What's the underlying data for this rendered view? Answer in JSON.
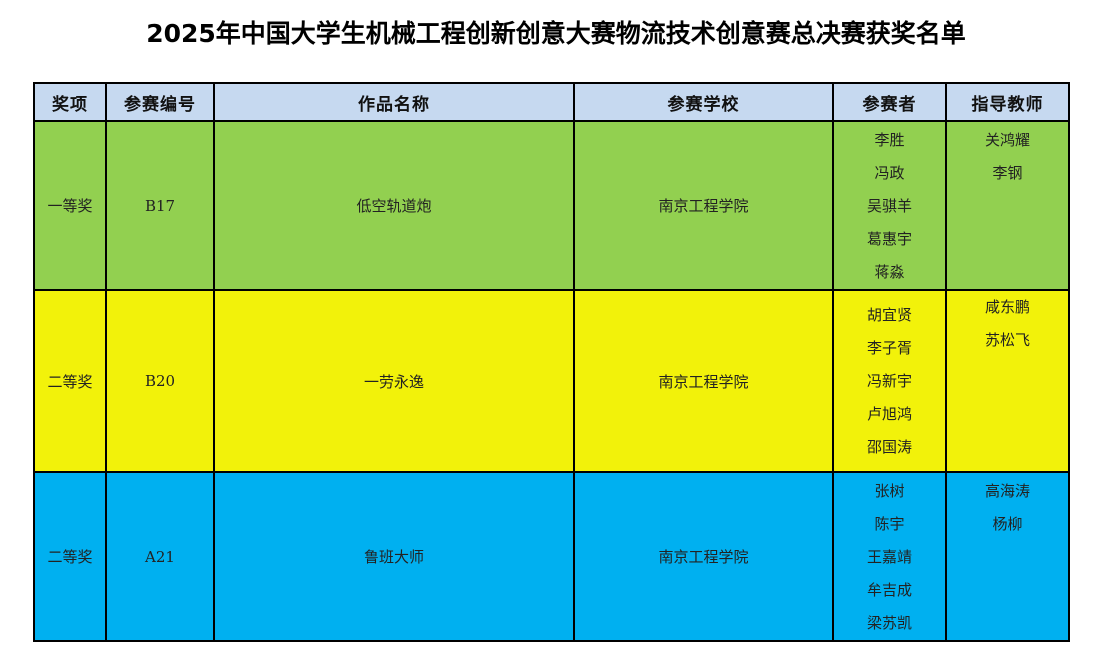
{
  "title": "2025年中国大学生机械工程创新创意大赛物流技术创意赛总决赛获奖名单",
  "headers": [
    "奖项",
    "参赛编号",
    "作品名称",
    "参赛学校",
    "参赛者",
    "指导教师"
  ],
  "colors": {
    "header": "#c6d9f0",
    "first_prize": "#92d050",
    "second_prize_1": "#f2f20a",
    "second_prize_2": "#00b0f0"
  },
  "rows": [
    {
      "award": "一等奖",
      "id": "B17",
      "work": "低空轨道炮",
      "school": "南京工程学院",
      "members": [
        "李胜",
        "冯政",
        "吴骐羊",
        "葛惠宇",
        "蒋淼"
      ],
      "teachers": [
        "关鸿耀",
        "李钢"
      ]
    },
    {
      "award": "二等奖",
      "id": "B20",
      "work": "一劳永逸",
      "school": "南京工程学院",
      "members": [
        "胡宜贤",
        "李子胥",
        "冯新宇",
        "卢旭鸿",
        "邵国涛"
      ],
      "teachers": [
        "咸东鹏",
        "苏松飞"
      ]
    },
    {
      "award": "二等奖",
      "id": "A21",
      "work": "鲁班大师",
      "school": "南京工程学院",
      "members": [
        "张树",
        "陈宇",
        "王嘉靖",
        "牟吉成",
        "梁苏凯"
      ],
      "teachers": [
        "高海涛",
        "杨柳"
      ]
    }
  ]
}
